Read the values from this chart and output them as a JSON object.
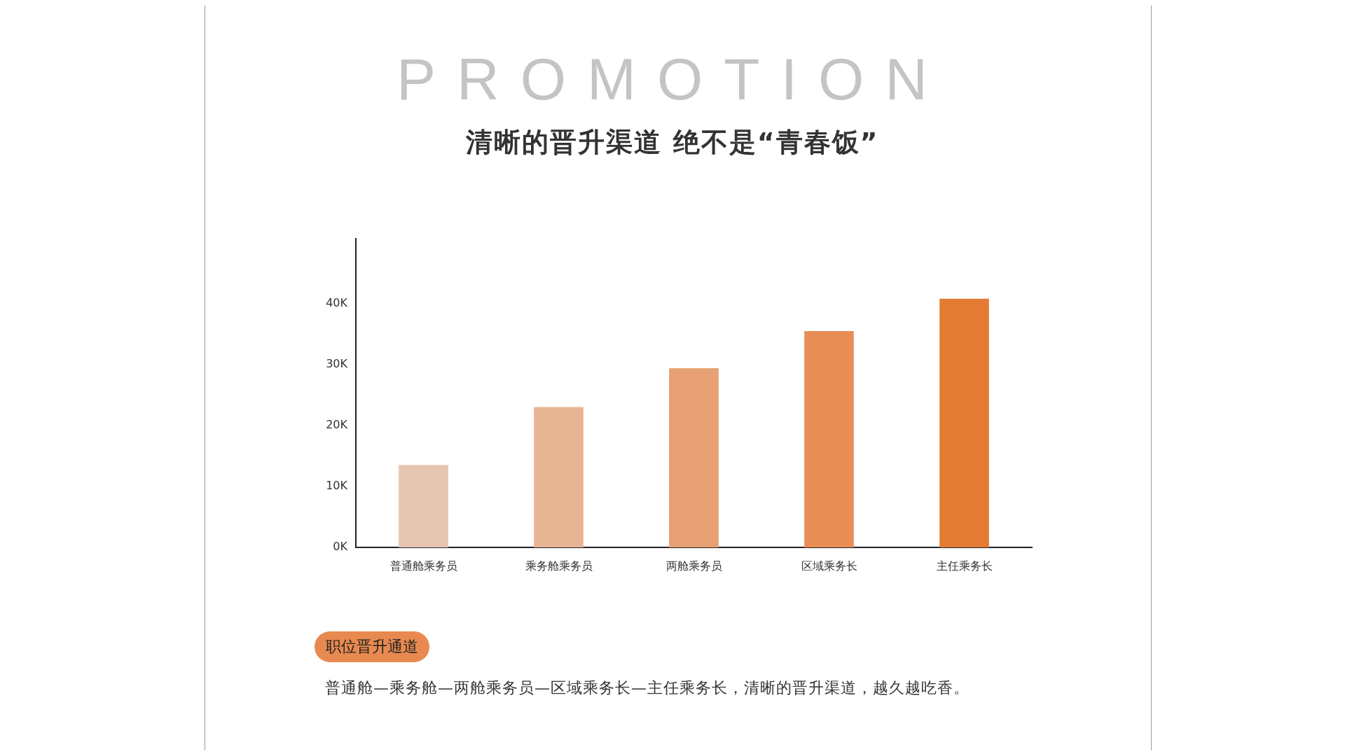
{
  "chart_data": {
    "type": "bar",
    "title": "清晰的晋升渠道 绝不是“青春饭”",
    "subtitle": "PROMOTION",
    "categories": [
      "普通舱乘务员",
      "乘务舱乘务员",
      "两舱乘务员",
      "区域乘务长",
      "主任乘务长"
    ],
    "values": [
      13500,
      23000,
      29400,
      35500,
      40800
    ],
    "colors": [
      "#e5c6b0",
      "#e8b594",
      "#e7a073",
      "#e78d55",
      "#e47b35"
    ],
    "ylim": [
      0,
      50700
    ],
    "yticks": [
      {
        "value": 0,
        "label": "0K"
      },
      {
        "value": 10000,
        "label": "10K"
      },
      {
        "value": 20000,
        "label": "20K"
      },
      {
        "value": 30000,
        "label": "30K"
      },
      {
        "value": 40000,
        "label": "40K"
      }
    ],
    "grid": false,
    "legend": false,
    "annotations": [
      "职位晋升通道",
      "普通舱—乘务舱—两舱乘务员—区域乘务长—主任乘务长，清晰的晋升渠道，越久越吃香。"
    ]
  }
}
